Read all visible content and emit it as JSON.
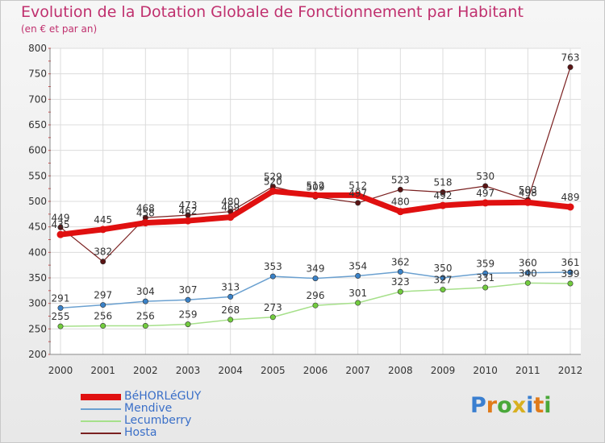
{
  "title": "Evolution de la Dotation Globale de Fonctionnement par Habitant",
  "subtitle": "(en € et par an)",
  "logo": {
    "text": "Proxiti",
    "colors": [
      "#3a7fd0",
      "#e07b1a",
      "#4aa83a",
      "#d8b020",
      "#3a7fd0",
      "#e07b1a",
      "#4aa83a"
    ]
  },
  "chart_data": {
    "type": "line",
    "title": "Evolution de la Dotation Globale de Fonctionnement par Habitant",
    "subtitle": "(en € et par an)",
    "x": [
      "2000",
      "2001",
      "2002",
      "2003",
      "2004",
      "2005",
      "2006",
      "2007",
      "2008",
      "2009",
      "2010",
      "2011",
      "2012"
    ],
    "ylim": [
      200,
      800
    ],
    "yticks": [
      200,
      250,
      300,
      350,
      400,
      450,
      500,
      550,
      600,
      650,
      700,
      750,
      800
    ],
    "legend_position": "bottom-left",
    "series": [
      {
        "name": "BéHORLéGUY",
        "color": "#e01010",
        "marker": "#e01010",
        "width": 7,
        "values": [
          435,
          445,
          458,
          462,
          469,
          520,
          512,
          512,
          480,
          492,
          497,
          498,
          489
        ]
      },
      {
        "name": "Mendive",
        "color": "#6aa0d0",
        "marker": "#3a82c8",
        "width": 1.5,
        "values": [
          291,
          297,
          304,
          307,
          313,
          353,
          349,
          354,
          362,
          350,
          359,
          360,
          361
        ]
      },
      {
        "name": "Lecumberry",
        "color": "#a6e08a",
        "marker": "#72cc3e",
        "width": 1.5,
        "values": [
          255,
          256,
          256,
          259,
          268,
          273,
          296,
          301,
          323,
          327,
          331,
          340,
          339
        ]
      },
      {
        "name": "Hosta",
        "color": "#7a2020",
        "marker": "#5a1414",
        "width": 1.2,
        "values": [
          449,
          382,
          468,
          473,
          480,
          529,
          509,
          497,
          523,
          518,
          530,
          503,
          763
        ]
      }
    ]
  }
}
